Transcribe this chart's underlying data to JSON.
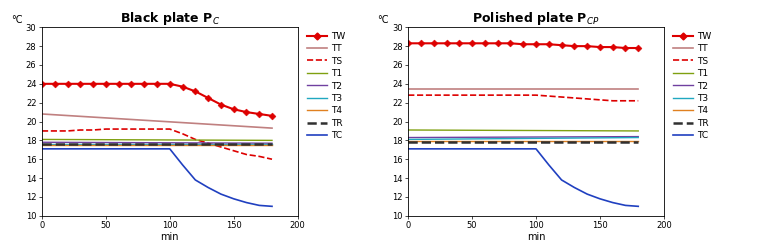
{
  "left_title": "Black plate P$_C$",
  "right_title": "Polished plate P$_{CP}$",
  "xlabel": "min",
  "ylabel": "°C",
  "xlim": [
    0,
    200
  ],
  "ylim": [
    10,
    30
  ],
  "yticks": [
    10,
    12,
    14,
    16,
    18,
    20,
    22,
    24,
    26,
    28,
    30
  ],
  "xticks": [
    0,
    50,
    100,
    150,
    200
  ],
  "left": {
    "TW": {
      "x": [
        0,
        10,
        20,
        30,
        40,
        50,
        60,
        70,
        80,
        90,
        100,
        110,
        120,
        130,
        140,
        150,
        160,
        170,
        180
      ],
      "y": [
        24.0,
        24.0,
        24.0,
        24.0,
        24.0,
        24.0,
        24.0,
        24.0,
        24.0,
        24.0,
        24.0,
        23.7,
        23.2,
        22.5,
        21.8,
        21.3,
        21.0,
        20.8,
        20.6
      ],
      "color": "#dd0000",
      "lw": 1.5,
      "ls": "-",
      "marker": "D",
      "ms": 3.5
    },
    "TT": {
      "x": [
        0,
        180
      ],
      "y": [
        20.8,
        19.3
      ],
      "color": "#c08080",
      "lw": 1.2,
      "ls": "-",
      "marker": null,
      "ms": 0
    },
    "TS": {
      "x": [
        0,
        10,
        20,
        30,
        40,
        50,
        60,
        70,
        80,
        90,
        100,
        110,
        120,
        130,
        140,
        150,
        160,
        170,
        180
      ],
      "y": [
        19.0,
        19.0,
        19.0,
        19.1,
        19.1,
        19.2,
        19.2,
        19.2,
        19.2,
        19.2,
        19.2,
        18.7,
        18.1,
        17.7,
        17.3,
        16.9,
        16.5,
        16.3,
        16.0
      ],
      "color": "#dd0000",
      "lw": 1.2,
      "ls": "--",
      "marker": null,
      "ms": 0
    },
    "T1": {
      "x": [
        0,
        180
      ],
      "y": [
        18.1,
        18.0
      ],
      "color": "#7fa010",
      "lw": 1.0,
      "ls": "-",
      "marker": null,
      "ms": 0
    },
    "T2": {
      "x": [
        0,
        180
      ],
      "y": [
        17.8,
        17.7
      ],
      "color": "#7040a0",
      "lw": 1.0,
      "ls": "-",
      "marker": null,
      "ms": 0
    },
    "T3": {
      "x": [
        0,
        180
      ],
      "y": [
        17.6,
        17.6
      ],
      "color": "#20a8c0",
      "lw": 1.0,
      "ls": "-",
      "marker": null,
      "ms": 0
    },
    "T4": {
      "x": [
        0,
        180
      ],
      "y": [
        17.5,
        17.5
      ],
      "color": "#e08020",
      "lw": 1.0,
      "ls": "-",
      "marker": null,
      "ms": 0
    },
    "TR": {
      "x": [
        0,
        180
      ],
      "y": [
        17.65,
        17.65
      ],
      "color": "#303030",
      "lw": 1.8,
      "ls": "--",
      "marker": null,
      "ms": 0
    },
    "TC": {
      "x": [
        0,
        10,
        20,
        30,
        40,
        50,
        60,
        70,
        80,
        90,
        100,
        110,
        120,
        130,
        140,
        150,
        160,
        170,
        180
      ],
      "y": [
        17.1,
        17.1,
        17.1,
        17.1,
        17.1,
        17.1,
        17.1,
        17.1,
        17.1,
        17.1,
        17.1,
        15.4,
        13.8,
        13.0,
        12.3,
        11.8,
        11.4,
        11.1,
        11.0
      ],
      "color": "#2040c0",
      "lw": 1.2,
      "ls": "-",
      "marker": null,
      "ms": 0
    }
  },
  "right": {
    "TW": {
      "x": [
        0,
        10,
        20,
        30,
        40,
        50,
        60,
        70,
        80,
        90,
        100,
        110,
        120,
        130,
        140,
        150,
        160,
        170,
        180
      ],
      "y": [
        28.3,
        28.3,
        28.3,
        28.3,
        28.3,
        28.3,
        28.3,
        28.3,
        28.3,
        28.2,
        28.2,
        28.2,
        28.1,
        28.0,
        28.0,
        27.9,
        27.9,
        27.8,
        27.8
      ],
      "color": "#dd0000",
      "lw": 1.5,
      "ls": "-",
      "marker": "D",
      "ms": 3.5
    },
    "TT": {
      "x": [
        0,
        180
      ],
      "y": [
        23.5,
        23.5
      ],
      "color": "#c08080",
      "lw": 1.2,
      "ls": "-",
      "marker": null,
      "ms": 0
    },
    "TS": {
      "x": [
        0,
        10,
        20,
        30,
        40,
        50,
        60,
        70,
        80,
        90,
        100,
        110,
        120,
        130,
        140,
        150,
        160,
        170,
        180
      ],
      "y": [
        22.8,
        22.8,
        22.8,
        22.8,
        22.8,
        22.8,
        22.8,
        22.8,
        22.8,
        22.8,
        22.8,
        22.7,
        22.6,
        22.5,
        22.4,
        22.3,
        22.2,
        22.2,
        22.2
      ],
      "color": "#dd0000",
      "lw": 1.2,
      "ls": "--",
      "marker": null,
      "ms": 0
    },
    "T1": {
      "x": [
        0,
        180
      ],
      "y": [
        19.1,
        19.0
      ],
      "color": "#7fa010",
      "lw": 1.0,
      "ls": "-",
      "marker": null,
      "ms": 0
    },
    "T2": {
      "x": [
        0,
        180
      ],
      "y": [
        18.3,
        18.4
      ],
      "color": "#7040a0",
      "lw": 1.0,
      "ls": "-",
      "marker": null,
      "ms": 0
    },
    "T3": {
      "x": [
        0,
        180
      ],
      "y": [
        18.1,
        18.3
      ],
      "color": "#20a8c0",
      "lw": 1.0,
      "ls": "-",
      "marker": null,
      "ms": 0
    },
    "T4": {
      "x": [
        0,
        180
      ],
      "y": [
        17.9,
        17.9
      ],
      "color": "#e08020",
      "lw": 1.0,
      "ls": "-",
      "marker": null,
      "ms": 0
    },
    "TR": {
      "x": [
        0,
        180
      ],
      "y": [
        17.8,
        17.8
      ],
      "color": "#303030",
      "lw": 1.8,
      "ls": "--",
      "marker": null,
      "ms": 0
    },
    "TC": {
      "x": [
        0,
        10,
        20,
        30,
        40,
        50,
        60,
        70,
        80,
        90,
        100,
        110,
        120,
        130,
        140,
        150,
        160,
        170,
        180
      ],
      "y": [
        17.1,
        17.1,
        17.1,
        17.1,
        17.1,
        17.1,
        17.1,
        17.1,
        17.1,
        17.1,
        17.1,
        15.4,
        13.8,
        13.0,
        12.3,
        11.8,
        11.4,
        11.1,
        11.0
      ],
      "color": "#2040c0",
      "lw": 1.2,
      "ls": "-",
      "marker": null,
      "ms": 0
    }
  },
  "legend_entries": [
    {
      "label": "TW",
      "color": "#dd0000",
      "ls": "-",
      "marker": "D",
      "lw": 1.5,
      "ms": 3.5
    },
    {
      "label": "TT",
      "color": "#c08080",
      "ls": "-",
      "marker": null,
      "lw": 1.2,
      "ms": 0
    },
    {
      "label": "TS",
      "color": "#dd0000",
      "ls": "--",
      "marker": null,
      "lw": 1.2,
      "ms": 0
    },
    {
      "label": "T1",
      "color": "#7fa010",
      "ls": "-",
      "marker": null,
      "lw": 1.0,
      "ms": 0
    },
    {
      "label": "T2",
      "color": "#7040a0",
      "ls": "-",
      "marker": null,
      "lw": 1.0,
      "ms": 0
    },
    {
      "label": "T3",
      "color": "#20a8c0",
      "ls": "-",
      "marker": null,
      "lw": 1.0,
      "ms": 0
    },
    {
      "label": "T4",
      "color": "#e08020",
      "ls": "-",
      "marker": null,
      "lw": 1.0,
      "ms": 0
    },
    {
      "label": "TR",
      "color": "#303030",
      "ls": "--",
      "marker": null,
      "lw": 1.8,
      "ms": 0
    },
    {
      "label": "TC",
      "color": "#2040c0",
      "ls": "-",
      "marker": null,
      "lw": 1.2,
      "ms": 0
    }
  ],
  "fig_width": 7.63,
  "fig_height": 2.48,
  "dpi": 100,
  "title_fontsize": 9,
  "tick_fontsize": 6,
  "axis_label_fontsize": 7,
  "legend_fontsize": 6.5
}
